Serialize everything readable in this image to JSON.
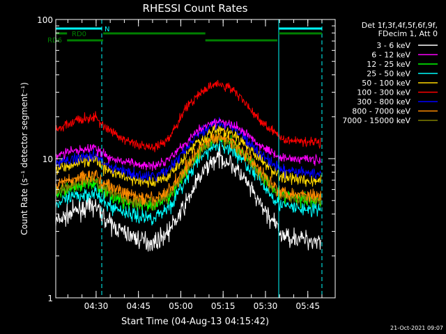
{
  "chart_data": {
    "type": "line",
    "title": "RHESSI Count Rates",
    "xlabel": "Start Time (04-Aug-13 04:15:42)",
    "ylabel": "Count Rate (s⁻¹ detector segment⁻¹)",
    "yscale": "log",
    "ylim": [
      1,
      100
    ],
    "xlim_minutes_after_start": [
      0,
      99
    ],
    "x_ticks": [
      "04:30",
      "04:45",
      "05:00",
      "05:15",
      "05:30",
      "05:45"
    ],
    "y_ticks": [
      "1",
      "10",
      "100"
    ],
    "legend_header": [
      "Det 1f,3f,4f,5f,6f,9f,",
      "FDecim 1, Att 0"
    ],
    "legend_position": "right",
    "timestamp": "21-Oct-2021 09:07",
    "annotations": {
      "night_label": "N",
      "rd0_label": "RD0",
      "rd6_label": "RD6"
    },
    "vertical_lines_minutes_after_start": {
      "solid": [
        0,
        79
      ],
      "dashed": [
        16.3,
        94.3
      ]
    },
    "series": [
      {
        "name": "3 - 6 keV",
        "color": "#ffffff",
        "values": [
          [
            0,
            3.5
          ],
          [
            8,
            4.3
          ],
          [
            14,
            4.6
          ],
          [
            16,
            4.0
          ],
          [
            20,
            3.3
          ],
          [
            25,
            2.9
          ],
          [
            30,
            2.6
          ],
          [
            35,
            2.5
          ],
          [
            40,
            3.0
          ],
          [
            45,
            4.3
          ],
          [
            50,
            6.8
          ],
          [
            55,
            9.5
          ],
          [
            58,
            10.2
          ],
          [
            62,
            9.3
          ],
          [
            67,
            7.0
          ],
          [
            72,
            4.8
          ],
          [
            78,
            3.3
          ],
          [
            80,
            2.8
          ],
          [
            85,
            2.7
          ],
          [
            90,
            2.6
          ],
          [
            94,
            2.6
          ]
        ]
      },
      {
        "name": "6 - 12 keV",
        "color": "#ff00ff",
        "values": [
          [
            0,
            10.5
          ],
          [
            8,
            11.5
          ],
          [
            14,
            12.0
          ],
          [
            16,
            11.0
          ],
          [
            20,
            10.0
          ],
          [
            25,
            9.4
          ],
          [
            30,
            9.0
          ],
          [
            35,
            9.0
          ],
          [
            40,
            10.0
          ],
          [
            45,
            12.5
          ],
          [
            50,
            15.5
          ],
          [
            55,
            18.0
          ],
          [
            58,
            18.5
          ],
          [
            62,
            17.5
          ],
          [
            67,
            15.5
          ],
          [
            72,
            12.8
          ],
          [
            78,
            10.6
          ],
          [
            80,
            10.2
          ],
          [
            85,
            10.0
          ],
          [
            90,
            9.9
          ],
          [
            94,
            9.8
          ]
        ]
      },
      {
        "name": "12 - 25 keV",
        "color": "#00ff00",
        "values": [
          [
            0,
            5.6
          ],
          [
            8,
            6.4
          ],
          [
            14,
            6.8
          ],
          [
            16,
            6.0
          ],
          [
            20,
            5.4
          ],
          [
            25,
            4.9
          ],
          [
            30,
            4.6
          ],
          [
            35,
            4.5
          ],
          [
            40,
            5.3
          ],
          [
            45,
            7.5
          ],
          [
            50,
            10.8
          ],
          [
            55,
            13.5
          ],
          [
            58,
            14.2
          ],
          [
            62,
            13.2
          ],
          [
            67,
            10.8
          ],
          [
            72,
            8.0
          ],
          [
            78,
            5.9
          ],
          [
            80,
            5.4
          ],
          [
            85,
            5.2
          ],
          [
            90,
            5.1
          ],
          [
            94,
            5.0
          ]
        ]
      },
      {
        "name": "25 - 50 keV",
        "color": "#00ffff",
        "values": [
          [
            0,
            4.7
          ],
          [
            8,
            5.4
          ],
          [
            14,
            5.8
          ],
          [
            16,
            5.0
          ],
          [
            20,
            4.5
          ],
          [
            25,
            4.1
          ],
          [
            30,
            3.8
          ],
          [
            35,
            3.8
          ],
          [
            40,
            4.5
          ],
          [
            45,
            6.4
          ],
          [
            50,
            9.4
          ],
          [
            55,
            12.0
          ],
          [
            58,
            12.6
          ],
          [
            62,
            11.7
          ],
          [
            67,
            9.5
          ],
          [
            72,
            7.0
          ],
          [
            78,
            5.1
          ],
          [
            80,
            4.6
          ],
          [
            85,
            4.4
          ],
          [
            90,
            4.3
          ],
          [
            94,
            4.3
          ]
        ]
      },
      {
        "name": "50 - 100 keV",
        "color": "#ffd700",
        "values": [
          [
            0,
            8.5
          ],
          [
            8,
            9.5
          ],
          [
            14,
            9.8
          ],
          [
            16,
            8.8
          ],
          [
            20,
            8.0
          ],
          [
            25,
            7.3
          ],
          [
            30,
            6.8
          ],
          [
            35,
            6.7
          ],
          [
            40,
            7.6
          ],
          [
            45,
            10.0
          ],
          [
            50,
            13.0
          ],
          [
            55,
            15.6
          ],
          [
            58,
            16.2
          ],
          [
            62,
            15.2
          ],
          [
            67,
            12.8
          ],
          [
            72,
            10.0
          ],
          [
            78,
            7.9
          ],
          [
            80,
            7.4
          ],
          [
            85,
            7.1
          ],
          [
            90,
            7.0
          ],
          [
            94,
            6.9
          ]
        ]
      },
      {
        "name": "100 - 300 keV",
        "color": "#ff0000",
        "values": [
          [
            0,
            16.0
          ],
          [
            8,
            19.0
          ],
          [
            14,
            20.0
          ],
          [
            16,
            17.5
          ],
          [
            20,
            15.5
          ],
          [
            25,
            13.5
          ],
          [
            30,
            12.3
          ],
          [
            35,
            12.0
          ],
          [
            40,
            14.0
          ],
          [
            45,
            21.0
          ],
          [
            50,
            28.5
          ],
          [
            55,
            33.5
          ],
          [
            58,
            34.5
          ],
          [
            62,
            32.0
          ],
          [
            67,
            25.5
          ],
          [
            72,
            19.0
          ],
          [
            78,
            15.0
          ],
          [
            80,
            14.0
          ],
          [
            85,
            13.5
          ],
          [
            90,
            13.3
          ],
          [
            94,
            13.2
          ]
        ]
      },
      {
        "name": "300 - 800 keV",
        "color": "#0000ff",
        "values": [
          [
            0,
            9.2
          ],
          [
            8,
            10.2
          ],
          [
            14,
            10.8
          ],
          [
            16,
            9.6
          ],
          [
            20,
            8.7
          ],
          [
            25,
            8.0
          ],
          [
            30,
            7.5
          ],
          [
            35,
            7.4
          ],
          [
            40,
            8.4
          ],
          [
            45,
            11.0
          ],
          [
            50,
            14.5
          ],
          [
            55,
            17.5
          ],
          [
            58,
            18.2
          ],
          [
            62,
            17.0
          ],
          [
            67,
            14.2
          ],
          [
            72,
            11.0
          ],
          [
            78,
            8.8
          ],
          [
            80,
            8.3
          ],
          [
            85,
            8.0
          ],
          [
            90,
            7.9
          ],
          [
            94,
            7.8
          ]
        ]
      },
      {
        "name": "800 - 7000 keV",
        "color": "#ff8c00",
        "values": [
          [
            0,
            6.5
          ],
          [
            8,
            7.3
          ],
          [
            14,
            7.7
          ],
          [
            16,
            6.9
          ],
          [
            20,
            6.2
          ],
          [
            25,
            5.6
          ],
          [
            30,
            5.2
          ],
          [
            35,
            5.1
          ],
          [
            40,
            5.9
          ],
          [
            45,
            8.0
          ],
          [
            50,
            11.3
          ],
          [
            55,
            14.0
          ],
          [
            58,
            14.6
          ],
          [
            62,
            13.6
          ],
          [
            67,
            11.0
          ],
          [
            72,
            8.3
          ],
          [
            78,
            6.3
          ],
          [
            80,
            5.8
          ],
          [
            85,
            5.6
          ],
          [
            90,
            5.5
          ],
          [
            94,
            5.4
          ]
        ]
      },
      {
        "name": "7000 - 15000 keV",
        "color": "#808000",
        "values": [
          [
            0,
            5.9
          ],
          [
            8,
            6.7
          ],
          [
            14,
            7.1
          ],
          [
            16,
            6.3
          ],
          [
            20,
            5.7
          ],
          [
            25,
            5.1
          ],
          [
            30,
            4.8
          ],
          [
            35,
            4.7
          ],
          [
            40,
            5.5
          ],
          [
            45,
            7.6
          ],
          [
            50,
            10.8
          ],
          [
            55,
            13.5
          ],
          [
            58,
            14.0
          ],
          [
            62,
            13.0
          ],
          [
            67,
            10.5
          ],
          [
            72,
            7.8
          ],
          [
            78,
            5.9
          ],
          [
            80,
            5.4
          ],
          [
            85,
            5.2
          ],
          [
            90,
            5.1
          ],
          [
            94,
            5.0
          ]
        ]
      }
    ]
  }
}
